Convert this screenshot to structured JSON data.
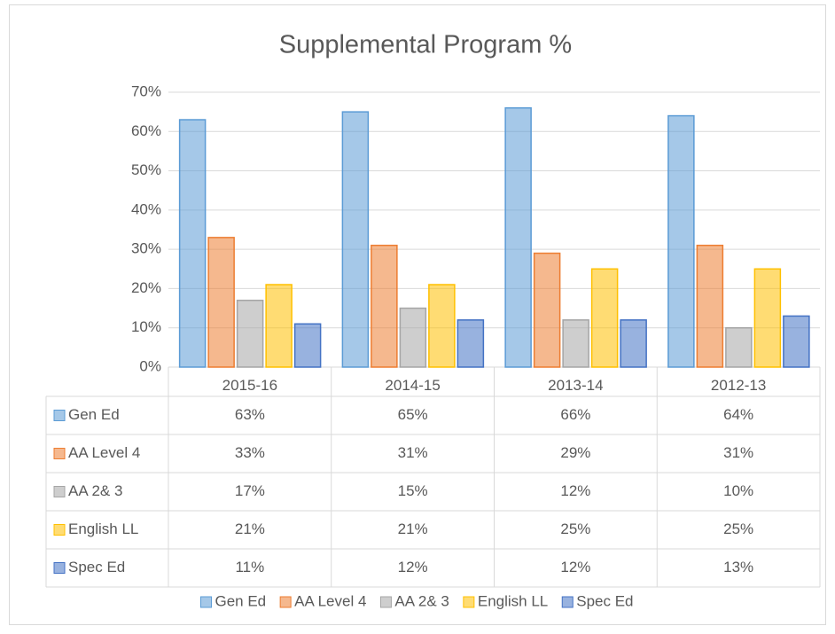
{
  "chart_data": {
    "type": "bar",
    "title": "Supplemental Program %",
    "categories": [
      "2015-16",
      "2014-15",
      "2013-14",
      "2012-13"
    ],
    "series": [
      {
        "name": "Gen Ed",
        "color": "#5b9bd5",
        "values": [
          63,
          65,
          66,
          64
        ],
        "value_labels": [
          "63%",
          "65%",
          "66%",
          "64%"
        ]
      },
      {
        "name": "AA Level 4",
        "color": "#ed7d31",
        "values": [
          33,
          31,
          29,
          31
        ],
        "value_labels": [
          "33%",
          "31%",
          "29%",
          "31%"
        ]
      },
      {
        "name": "AA 2& 3",
        "color": "#a5a5a5",
        "values": [
          17,
          15,
          12,
          10
        ],
        "value_labels": [
          "17%",
          "15%",
          "12%",
          "10%"
        ]
      },
      {
        "name": "English LL",
        "color": "#ffc000",
        "values": [
          21,
          21,
          25,
          25
        ],
        "value_labels": [
          "21%",
          "21%",
          "25%",
          "25%"
        ]
      },
      {
        "name": "Spec Ed",
        "color": "#4472c4",
        "values": [
          11,
          12,
          12,
          13
        ],
        "value_labels": [
          "11%",
          "12%",
          "12%",
          "13%"
        ]
      }
    ],
    "ylim": [
      0,
      70
    ],
    "yticks": [
      {
        "value": 0,
        "label": "0%"
      },
      {
        "value": 10,
        "label": "10%"
      },
      {
        "value": 20,
        "label": "20%"
      },
      {
        "value": 30,
        "label": "30%"
      },
      {
        "value": 40,
        "label": "40%"
      },
      {
        "value": 50,
        "label": "50%"
      },
      {
        "value": 60,
        "label": "60%"
      },
      {
        "value": 70,
        "label": "70%"
      }
    ],
    "grid": true,
    "legend": "bottom"
  }
}
